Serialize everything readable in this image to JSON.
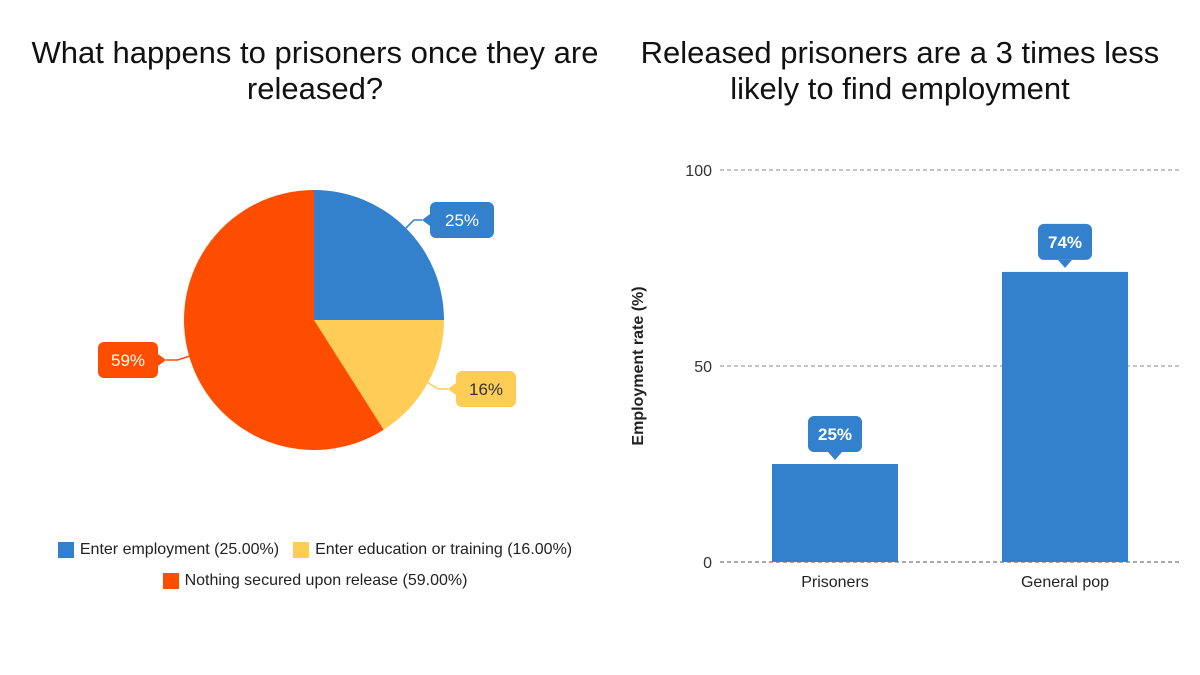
{
  "chart_data": [
    {
      "type": "pie",
      "title": "What happens to prisoners once they are released?",
      "slices": [
        {
          "label": "Enter employment (25.00%)",
          "value": 25,
          "data_label": "25%",
          "color": "#3380cc"
        },
        {
          "label": "Enter education or training (16.00%)",
          "value": 16,
          "data_label": "16%",
          "color": "#ffcc55"
        },
        {
          "label": "Nothing secured upon release (59.00%)",
          "value": 59,
          "data_label": "59%",
          "color": "#ff4d00"
        }
      ],
      "legend_position": "bottom"
    },
    {
      "type": "bar",
      "title": "Released prisoners are a 3 times less likely to find employment",
      "categories": [
        "Prisoners",
        "General pop"
      ],
      "values": [
        25,
        74
      ],
      "data_labels": [
        "25%",
        "74%"
      ],
      "xlabel": "",
      "ylabel": "Employment rate (%)",
      "ylim": [
        0,
        100
      ],
      "yticks": [
        "0",
        "50",
        "100"
      ],
      "grid": true,
      "color": "#3380cc"
    }
  ]
}
